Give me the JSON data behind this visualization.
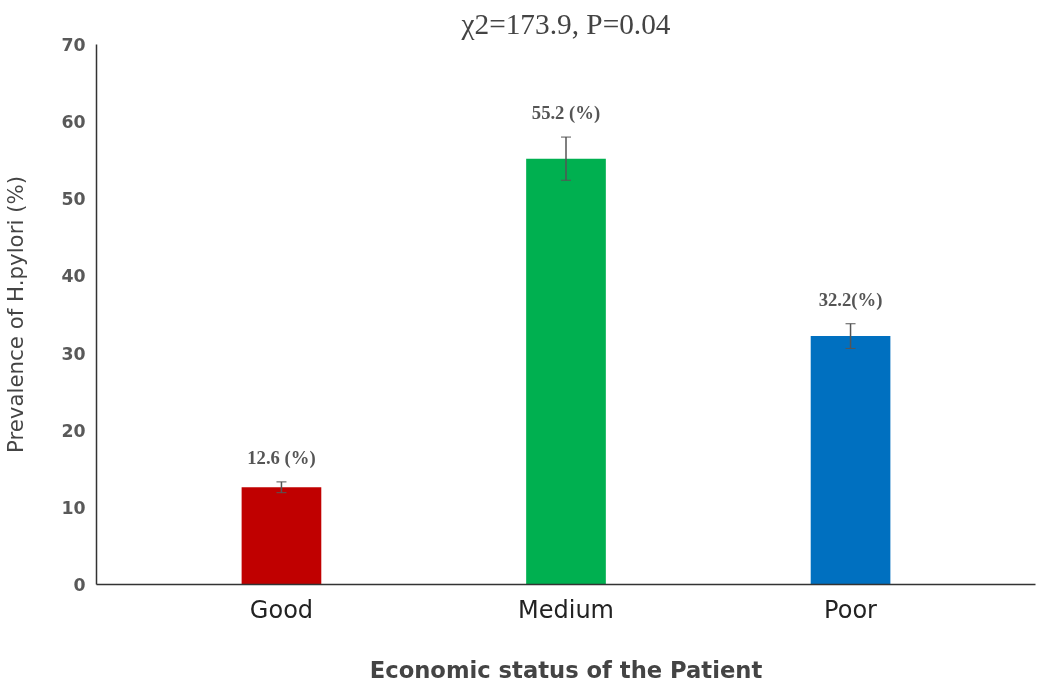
{
  "chart_data": {
    "type": "bar",
    "title": "χ2=173.9, P=0.04",
    "xlabel": "Economic status of the Patient",
    "ylabel": "Prevalence of H.pylori (%)",
    "categories": [
      "Good",
      "Medium",
      "Poor"
    ],
    "values": [
      12.6,
      55.2,
      32.2
    ],
    "colors": [
      "#c00000",
      "#00b050",
      "#0070c0"
    ],
    "errors": [
      0.7,
      2.8,
      1.6
    ],
    "value_labels": [
      "12.6 (%)",
      "55.2 (%)",
      "32.2(%)"
    ],
    "ylim": [
      0,
      70
    ],
    "yticks": [
      0,
      10,
      20,
      30,
      40,
      50,
      60,
      70
    ],
    "grid": false
  }
}
